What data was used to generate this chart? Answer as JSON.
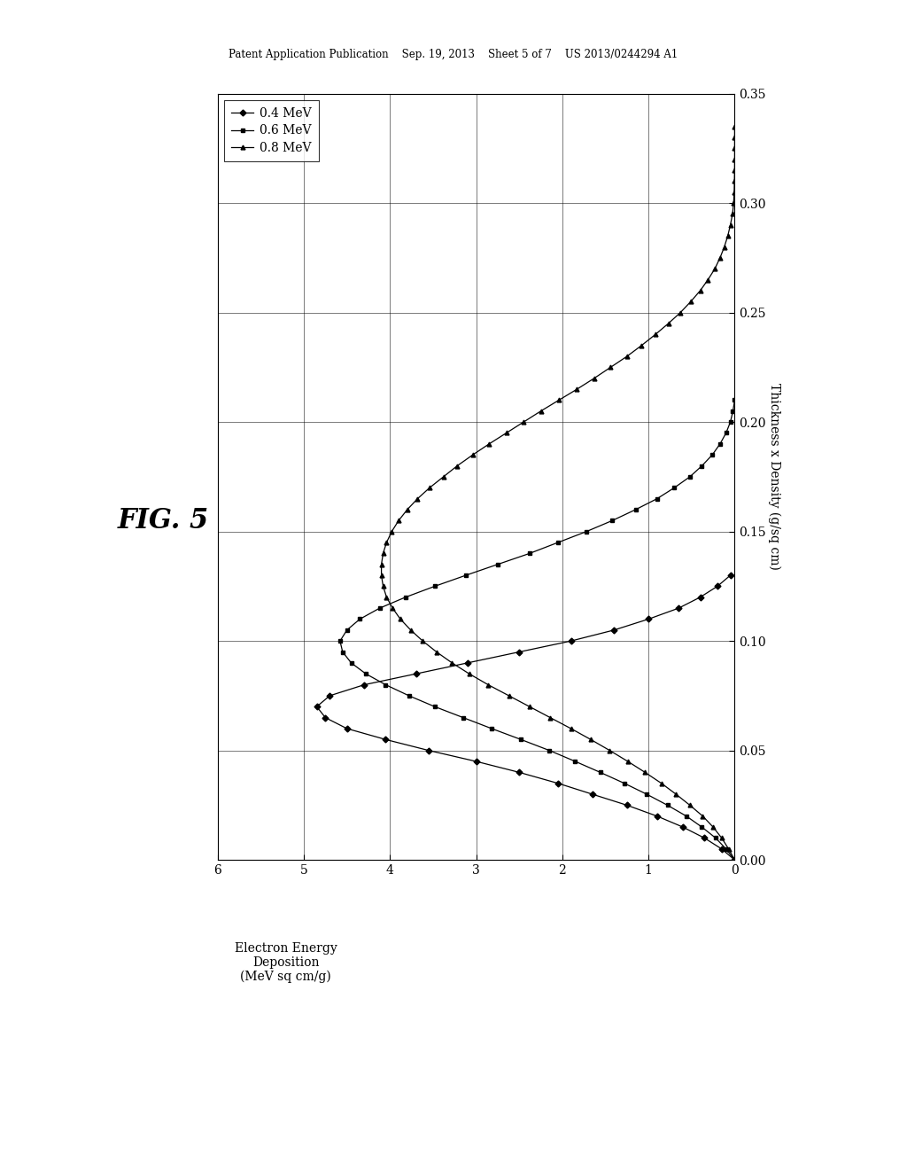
{
  "title": "FIG. 5",
  "header_text": "Patent Application Publication    Sep. 19, 2013    Sheet 5 of 7    US 2013/0244294 A1",
  "ylabel": "Thickness x Density (g/sq cm)",
  "xlabel_line1": "Electron Energy",
  "xlabel_line2": "Deposition",
  "xlabel_line3": "(MeV sq cm/g)",
  "y_min": 0.0,
  "y_max": 0.35,
  "x_min": 0.0,
  "x_max": 6.0,
  "y_ticks": [
    0.0,
    0.05,
    0.1,
    0.15,
    0.2,
    0.25,
    0.3,
    0.35
  ],
  "x_ticks": [
    0.0,
    1.0,
    2.0,
    3.0,
    4.0,
    5.0,
    6.0
  ],
  "legend_labels": [
    "0.4 MeV",
    "0.6 MeV",
    "0.8 MeV"
  ],
  "background_color": "#ffffff",
  "mev04_thickness": [
    0.0,
    0.005,
    0.01,
    0.015,
    0.02,
    0.025,
    0.03,
    0.035,
    0.04,
    0.045,
    0.05,
    0.055,
    0.06,
    0.065,
    0.07,
    0.075,
    0.08,
    0.085,
    0.09,
    0.095,
    0.1,
    0.105,
    0.11,
    0.115,
    0.12,
    0.125,
    0.13
  ],
  "mev04_energy": [
    0.0,
    0.15,
    0.35,
    0.6,
    0.9,
    1.25,
    1.65,
    2.05,
    2.5,
    3.0,
    3.55,
    4.05,
    4.5,
    4.75,
    4.85,
    4.7,
    4.3,
    3.7,
    3.1,
    2.5,
    1.9,
    1.4,
    1.0,
    0.65,
    0.4,
    0.2,
    0.05
  ],
  "mev06_thickness": [
    0.0,
    0.005,
    0.01,
    0.015,
    0.02,
    0.025,
    0.03,
    0.035,
    0.04,
    0.045,
    0.05,
    0.055,
    0.06,
    0.065,
    0.07,
    0.075,
    0.08,
    0.085,
    0.09,
    0.095,
    0.1,
    0.105,
    0.11,
    0.115,
    0.12,
    0.125,
    0.13,
    0.135,
    0.14,
    0.145,
    0.15,
    0.155,
    0.16,
    0.165,
    0.17,
    0.175,
    0.18,
    0.185,
    0.19,
    0.195,
    0.2,
    0.205,
    0.21
  ],
  "mev06_energy": [
    0.0,
    0.1,
    0.22,
    0.38,
    0.56,
    0.78,
    1.02,
    1.28,
    1.56,
    1.85,
    2.15,
    2.48,
    2.82,
    3.15,
    3.48,
    3.78,
    4.05,
    4.28,
    4.45,
    4.55,
    4.58,
    4.5,
    4.35,
    4.12,
    3.82,
    3.48,
    3.12,
    2.75,
    2.38,
    2.05,
    1.72,
    1.42,
    1.15,
    0.9,
    0.7,
    0.52,
    0.38,
    0.26,
    0.17,
    0.1,
    0.05,
    0.02,
    0.0
  ],
  "mev08_thickness": [
    0.0,
    0.005,
    0.01,
    0.015,
    0.02,
    0.025,
    0.03,
    0.035,
    0.04,
    0.045,
    0.05,
    0.055,
    0.06,
    0.065,
    0.07,
    0.075,
    0.08,
    0.085,
    0.09,
    0.095,
    0.1,
    0.105,
    0.11,
    0.115,
    0.12,
    0.125,
    0.13,
    0.135,
    0.14,
    0.145,
    0.15,
    0.155,
    0.16,
    0.165,
    0.17,
    0.175,
    0.18,
    0.185,
    0.19,
    0.195,
    0.2,
    0.205,
    0.21,
    0.215,
    0.22,
    0.225,
    0.23,
    0.235,
    0.24,
    0.245,
    0.25,
    0.255,
    0.26,
    0.265,
    0.27,
    0.275,
    0.28,
    0.285,
    0.29,
    0.295,
    0.3,
    0.305,
    0.31,
    0.315,
    0.32,
    0.325,
    0.33,
    0.335
  ],
  "mev08_energy": [
    0.0,
    0.07,
    0.15,
    0.25,
    0.37,
    0.52,
    0.68,
    0.85,
    1.04,
    1.24,
    1.45,
    1.67,
    1.9,
    2.14,
    2.38,
    2.62,
    2.86,
    3.08,
    3.28,
    3.46,
    3.62,
    3.76,
    3.88,
    3.97,
    4.04,
    4.08,
    4.1,
    4.1,
    4.08,
    4.04,
    3.98,
    3.9,
    3.8,
    3.68,
    3.54,
    3.38,
    3.22,
    3.04,
    2.85,
    2.65,
    2.45,
    2.25,
    2.04,
    1.83,
    1.63,
    1.44,
    1.25,
    1.08,
    0.92,
    0.77,
    0.63,
    0.51,
    0.4,
    0.31,
    0.23,
    0.17,
    0.12,
    0.08,
    0.05,
    0.025,
    0.012,
    0.006,
    0.003,
    0.001,
    0.0,
    0.0,
    0.0,
    0.0
  ]
}
